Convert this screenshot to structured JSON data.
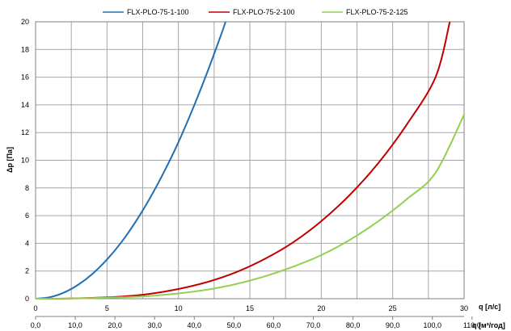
{
  "chart_data": {
    "type": "line",
    "xlabel": "q [л/с]",
    "x2label": "q [м³/год]",
    "ylabel": "Δp [Па]",
    "xlim": [
      0,
      30
    ],
    "ylim": [
      0,
      20
    ],
    "x_ticks": [
      "0",
      "5",
      "10",
      "15",
      "20",
      "25",
      "30"
    ],
    "x2_ticks": [
      "0,0",
      "10,0",
      "20,0",
      "30,0",
      "40,0",
      "50,0",
      "60,0",
      "70,0",
      "80,0",
      "90,0",
      "100,0",
      "110,0"
    ],
    "x2_per_x": 3.6,
    "y_ticks": [
      "0",
      "2",
      "4",
      "6",
      "8",
      "10",
      "12",
      "14",
      "16",
      "18",
      "20"
    ],
    "grid": true,
    "legend_position": "top",
    "series": [
      {
        "name": "FLX-PLO-75-1-100",
        "color": "#1f6fb4",
        "x": [
          0,
          1,
          2,
          3,
          4,
          5,
          6,
          7,
          8,
          9,
          10,
          11,
          12,
          13,
          13.3
        ],
        "y": [
          0,
          0.11,
          0.45,
          1.02,
          1.81,
          2.83,
          4.07,
          5.55,
          7.25,
          9.17,
          11.3,
          13.7,
          16.3,
          19.1,
          20
        ]
      },
      {
        "name": "FLX-PLO-75-2-100",
        "color": "#c00000",
        "x": [
          0,
          2,
          4,
          6,
          8,
          10,
          12,
          14,
          16,
          18,
          20,
          22,
          24,
          26,
          28,
          29
        ],
        "y": [
          0,
          0.01,
          0.06,
          0.15,
          0.35,
          0.7,
          1.2,
          1.9,
          2.85,
          4.05,
          5.6,
          7.5,
          9.8,
          12.6,
          16.0,
          20
        ]
      },
      {
        "name": "FLX-PLO-75-2-125",
        "color": "#92d050",
        "x": [
          0,
          2,
          4,
          6,
          8,
          10,
          12,
          14,
          16,
          18,
          20,
          22,
          24,
          26,
          28,
          30
        ],
        "y": [
          0,
          0.01,
          0.04,
          0.1,
          0.2,
          0.38,
          0.65,
          1.05,
          1.6,
          2.3,
          3.15,
          4.25,
          5.6,
          7.2,
          9.1,
          13.3
        ]
      }
    ]
  }
}
